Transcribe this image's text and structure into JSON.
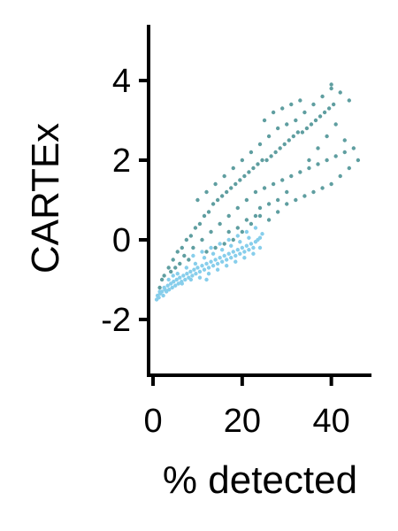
{
  "chart_data": {
    "type": "scatter",
    "title": "",
    "xlabel": "% detected",
    "ylabel": "CARTEx",
    "xlim": [
      -1,
      49
    ],
    "ylim": [
      -3.4,
      5.4
    ],
    "x_ticks": [
      0,
      20,
      40
    ],
    "x_tick_labels": [
      "0",
      "20",
      "40"
    ],
    "y_ticks": [
      -2,
      0,
      2,
      4
    ],
    "y_tick_labels": [
      "-2",
      "0",
      "2",
      "4"
    ],
    "grid": false,
    "legend": "none",
    "series": [
      {
        "color": "#87CEEB",
        "points": [
          [
            0.8,
            -1.5
          ],
          [
            1.0,
            -1.4
          ],
          [
            1.3,
            -1.45
          ],
          [
            1.6,
            -1.35
          ],
          [
            2.0,
            -1.3
          ],
          [
            2.3,
            -1.4
          ],
          [
            2.7,
            -1.25
          ],
          [
            3.0,
            -1.3
          ],
          [
            3.3,
            -1.15
          ],
          [
            3.6,
            -1.25
          ],
          [
            4.0,
            -1.1
          ],
          [
            4.3,
            -1.2
          ],
          [
            4.6,
            -1.05
          ],
          [
            5.0,
            -1.15
          ],
          [
            5.3,
            -1.0
          ],
          [
            5.7,
            -1.1
          ],
          [
            6.0,
            -0.95
          ],
          [
            6.4,
            -1.05
          ],
          [
            6.8,
            -0.9
          ],
          [
            7.2,
            -1.0
          ],
          [
            7.6,
            -0.85
          ],
          [
            8.0,
            -0.95
          ],
          [
            8.4,
            -0.8
          ],
          [
            8.8,
            -0.9
          ],
          [
            9.2,
            -0.75
          ],
          [
            9.6,
            -0.85
          ],
          [
            10.0,
            -0.7
          ],
          [
            10.5,
            -0.8
          ],
          [
            11.0,
            -0.65
          ],
          [
            11.5,
            -0.75
          ],
          [
            12.0,
            -0.6
          ],
          [
            12.5,
            -0.7
          ],
          [
            13.0,
            -0.55
          ],
          [
            13.5,
            -0.65
          ],
          [
            14.0,
            -0.5
          ],
          [
            14.5,
            -0.6
          ],
          [
            15.0,
            -0.45
          ],
          [
            15.5,
            -0.55
          ],
          [
            16.0,
            -0.4
          ],
          [
            16.5,
            -0.5
          ],
          [
            17.0,
            -0.35
          ],
          [
            17.5,
            -0.45
          ],
          [
            18.0,
            -0.3
          ],
          [
            18.5,
            -0.4
          ],
          [
            19.0,
            -0.25
          ],
          [
            19.5,
            -0.35
          ],
          [
            20.0,
            -0.2
          ],
          [
            20.5,
            -0.3
          ],
          [
            21.0,
            -0.15
          ],
          [
            21.5,
            -0.25
          ],
          [
            22.0,
            -0.1
          ],
          [
            22.5,
            -0.2
          ],
          [
            23.0,
            -0.05
          ],
          [
            23.5,
            0.0
          ],
          [
            24.0,
            0.05
          ],
          [
            24.5,
            0.15
          ],
          [
            3.5,
            -1.0
          ],
          [
            5.5,
            -0.85
          ],
          [
            7.5,
            -0.7
          ],
          [
            9.5,
            -0.6
          ],
          [
            11.5,
            -0.45
          ],
          [
            13.5,
            -0.35
          ],
          [
            15.5,
            -0.25
          ],
          [
            17.5,
            -0.15
          ],
          [
            19.5,
            -0.05
          ],
          [
            21.5,
            0.05
          ],
          [
            6.5,
            -1.1
          ],
          [
            8.5,
            -1.0
          ],
          [
            10.5,
            -0.95
          ],
          [
            12.5,
            -0.85
          ],
          [
            14.5,
            -0.75
          ],
          [
            16.5,
            -0.65
          ],
          [
            18.5,
            -0.55
          ],
          [
            20.5,
            -0.45
          ],
          [
            22.5,
            -0.35
          ],
          [
            24.0,
            -0.2
          ],
          [
            9.0,
            -0.4
          ],
          [
            11.0,
            -0.3
          ],
          [
            13.0,
            -0.2
          ],
          [
            15.0,
            -0.1
          ],
          [
            17.0,
            0.0
          ],
          [
            19.0,
            0.1
          ],
          [
            21.0,
            0.2
          ],
          [
            23.0,
            0.3
          ],
          [
            4.5,
            -0.9
          ],
          [
            2.5,
            -1.2
          ],
          [
            1.5,
            -1.3
          ],
          [
            12.0,
            -1.0
          ]
        ]
      },
      {
        "color": "#5F9EA0",
        "points": [
          [
            1.5,
            -1.2
          ],
          [
            2.5,
            -0.9
          ],
          [
            3.5,
            -0.7
          ],
          [
            4.5,
            -0.5
          ],
          [
            5.5,
            -0.3
          ],
          [
            6.5,
            -0.2
          ],
          [
            7.5,
            0.0
          ],
          [
            8.5,
            0.1
          ],
          [
            9.5,
            0.3
          ],
          [
            10.5,
            0.4
          ],
          [
            11.5,
            0.6
          ],
          [
            12.5,
            0.7
          ],
          [
            13.5,
            0.9
          ],
          [
            14.5,
            1.0
          ],
          [
            15.5,
            1.1
          ],
          [
            16.5,
            1.2
          ],
          [
            17.5,
            1.3
          ],
          [
            18.5,
            1.4
          ],
          [
            19.5,
            1.5
          ],
          [
            20.5,
            1.6
          ],
          [
            21.5,
            1.7
          ],
          [
            22.5,
            1.8
          ],
          [
            23.5,
            1.9
          ],
          [
            24.5,
            2.0
          ],
          [
            25.5,
            2.0
          ],
          [
            26.5,
            2.1
          ],
          [
            27.5,
            2.2
          ],
          [
            28.5,
            2.3
          ],
          [
            29.5,
            2.4
          ],
          [
            30.5,
            2.5
          ],
          [
            31.5,
            2.6
          ],
          [
            32.5,
            2.7
          ],
          [
            33.5,
            2.7
          ],
          [
            34.5,
            2.8
          ],
          [
            35.5,
            2.9
          ],
          [
            36.5,
            3.0
          ],
          [
            37.5,
            3.1
          ],
          [
            38.5,
            3.2
          ],
          [
            39.5,
            3.3
          ],
          [
            40.5,
            3.4
          ],
          [
            5.0,
            -0.7
          ],
          [
            7.0,
            -0.4
          ],
          [
            9.0,
            -0.2
          ],
          [
            11.0,
            0.0
          ],
          [
            13.0,
            0.2
          ],
          [
            15.0,
            0.4
          ],
          [
            17.0,
            0.6
          ],
          [
            19.0,
            0.8
          ],
          [
            21.0,
            1.0
          ],
          [
            23.0,
            1.2
          ],
          [
            25.0,
            1.3
          ],
          [
            27.0,
            1.4
          ],
          [
            29.0,
            1.5
          ],
          [
            31.0,
            1.6
          ],
          [
            33.0,
            1.7
          ],
          [
            35.0,
            1.8
          ],
          [
            37.0,
            1.9
          ],
          [
            39.0,
            2.0
          ],
          [
            41.0,
            2.1
          ],
          [
            43.0,
            2.2
          ],
          [
            45.0,
            2.3
          ],
          [
            26.0,
            0.5
          ],
          [
            28.0,
            0.7
          ],
          [
            30.0,
            0.9
          ],
          [
            32.0,
            1.0
          ],
          [
            34.0,
            1.1
          ],
          [
            36.0,
            1.2
          ],
          [
            38.0,
            1.3
          ],
          [
            40.0,
            1.4
          ],
          [
            42.0,
            1.6
          ],
          [
            44.0,
            1.8
          ],
          [
            46.0,
            2.0
          ],
          [
            10.0,
            1.0
          ],
          [
            12.0,
            1.2
          ],
          [
            14.0,
            1.4
          ],
          [
            16.0,
            1.6
          ],
          [
            18.0,
            1.8
          ],
          [
            20.0,
            2.0
          ],
          [
            22.0,
            2.2
          ],
          [
            24.0,
            2.4
          ],
          [
            26.0,
            2.6
          ],
          [
            28.0,
            2.8
          ],
          [
            30.0,
            2.9
          ],
          [
            32.0,
            3.0
          ],
          [
            34.0,
            3.2
          ],
          [
            20.0,
            0.2
          ],
          [
            22.0,
            0.4
          ],
          [
            24.0,
            0.6
          ],
          [
            18.0,
            0.0
          ],
          [
            16.0,
            -0.1
          ],
          [
            14.0,
            -0.2
          ],
          [
            12.0,
            -0.3
          ],
          [
            8.0,
            -0.5
          ],
          [
            6.0,
            -0.6
          ],
          [
            4.0,
            -0.8
          ],
          [
            2.0,
            -1.0
          ],
          [
            25.0,
            3.0
          ],
          [
            27.0,
            3.2
          ],
          [
            29.0,
            3.3
          ],
          [
            31.0,
            3.4
          ],
          [
            33.0,
            3.5
          ],
          [
            36.0,
            3.4
          ],
          [
            38.0,
            3.6
          ],
          [
            40.0,
            3.8
          ],
          [
            40.0,
            3.9
          ],
          [
            42.0,
            3.7
          ],
          [
            44.0,
            3.5
          ],
          [
            35.0,
            2.0
          ],
          [
            37.0,
            2.3
          ],
          [
            39.0,
            2.6
          ],
          [
            41.0,
            2.9
          ],
          [
            43.0,
            2.5
          ],
          [
            30.0,
            1.2
          ],
          [
            28.0,
            1.0
          ],
          [
            26.0,
            0.9
          ],
          [
            24.0,
            0.8
          ],
          [
            23.0,
            0.6
          ],
          [
            21.0,
            0.5
          ],
          [
            19.0,
            0.3
          ],
          [
            17.0,
            0.2
          ]
        ]
      }
    ]
  }
}
